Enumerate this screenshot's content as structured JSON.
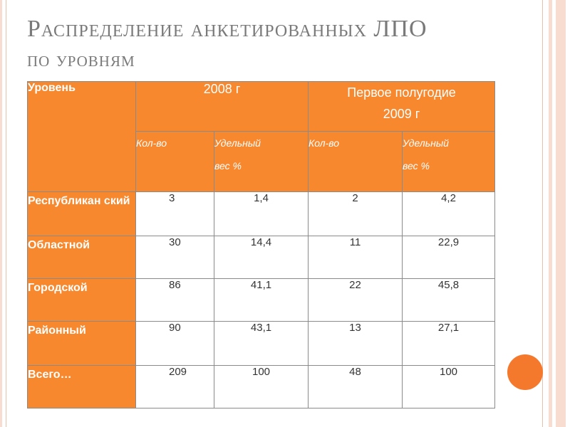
{
  "slide": {
    "title_line1": "Распределение анкетированных ЛПО",
    "title_line2": "по уровням",
    "accent_color": "#f7882e"
  },
  "table": {
    "header": {
      "level": "Уровень",
      "period1": "2008 г",
      "period2_line1": "Первое полугодие",
      "period2_line2": "2009 г",
      "count": "Кол-во",
      "share_line1": "Удельный",
      "share_line2": "вес %"
    },
    "rows": [
      {
        "label": "Республикан ский",
        "c1": "3",
        "s1": "1,4",
        "c2": "2",
        "s2": "4,2"
      },
      {
        "label": "Областной",
        "c1": "30",
        "s1": "14,4",
        "c2": "11",
        "s2": "22,9"
      },
      {
        "label": "Городской",
        "c1": "86",
        "s1": "41,1",
        "c2": "22",
        "s2": "45,8"
      },
      {
        "label": "Районный",
        "c1": "90",
        "s1": "43,1",
        "c2": "13",
        "s2": "27,1"
      },
      {
        "label": "Всего…",
        "c1": "209",
        "s1": "100",
        "c2": "48",
        "s2": "100"
      }
    ]
  }
}
